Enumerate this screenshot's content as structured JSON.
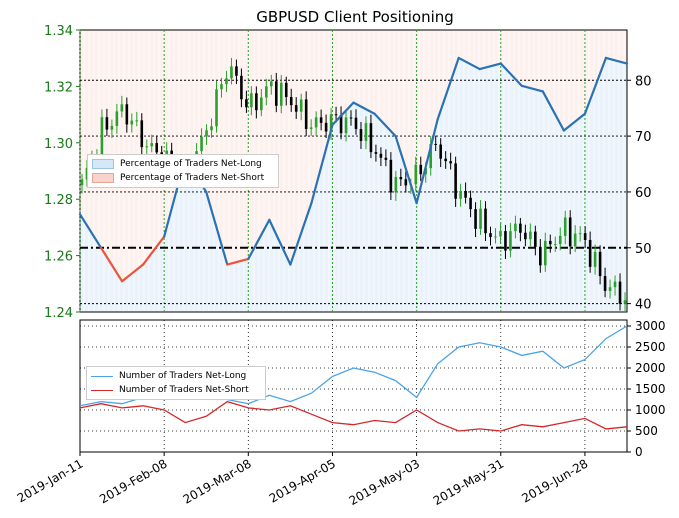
{
  "title": "GBPUSD Client Positioning",
  "colors": {
    "price_axis": "#1a7a1a",
    "long_line": "#2a72b5",
    "long_fill": "#d6e7f7",
    "short_line": "#e8553a",
    "short_fill": "#f8d4cc",
    "candle_up": "#2ca02c",
    "candle_down": "#000000",
    "count_long": "#4aa3e8",
    "count_short": "#d62728",
    "gridline": "#2ca02c"
  },
  "legend_top": {
    "placement": "middle-left",
    "items": [
      "Percentage of Traders Net-Long",
      "Percentage of Traders Net-Short"
    ]
  },
  "legend_bottom": {
    "placement": "middle-left",
    "items": [
      "Number of Traders Net-Long",
      "Number of Traders Net-Short"
    ]
  },
  "x_tick_labels": [
    "2019-Jan-11",
    "2019-Feb-08",
    "2019-Mar-08",
    "2019-Apr-05",
    "2019-May-03",
    "2019-May-31",
    "2019-Jun-28"
  ],
  "chart_data": [
    {
      "type": "line",
      "title": "GBPUSD Client Positioning",
      "left_axis_ticks": [
        "1.24",
        "1.26",
        "1.28",
        "1.30",
        "1.32",
        "1.34"
      ],
      "right_axis_ticks": [
        "40",
        "50",
        "60",
        "70",
        "80"
      ],
      "ylim_left": [
        1.24,
        1.34
      ],
      "ylim_right": [
        38.5,
        89
      ],
      "reference_line": 50,
      "x": [
        "2019-Jan-11",
        "2019-Jan-18",
        "2019-Jan-25",
        "2019-Feb-01",
        "2019-Feb-08",
        "2019-Feb-15",
        "2019-Feb-22",
        "2019-Mar-01",
        "2019-Mar-08",
        "2019-Mar-15",
        "2019-Mar-22",
        "2019-Mar-29",
        "2019-Apr-05",
        "2019-Apr-12",
        "2019-Apr-19",
        "2019-Apr-26",
        "2019-May-03",
        "2019-May-10",
        "2019-May-17",
        "2019-May-24",
        "2019-May-31",
        "2019-Jun-07",
        "2019-Jun-14",
        "2019-Jun-21",
        "2019-Jun-28",
        "2019-Jul-05",
        "2019-Jul-09"
      ],
      "series": [
        {
          "name": "Percentage of Traders Net-Long",
          "values": [
            56,
            50,
            44,
            47,
            52,
            66,
            60,
            47,
            48,
            55,
            47,
            58,
            72,
            76,
            74,
            70,
            58,
            73,
            84,
            82,
            83,
            79,
            78,
            71,
            74,
            84,
            83
          ]
        },
        {
          "name": "GBPUSD",
          "values": [
            1.285,
            1.305,
            1.312,
            1.3,
            1.293,
            1.288,
            1.305,
            1.328,
            1.312,
            1.32,
            1.315,
            1.306,
            1.308,
            1.307,
            1.298,
            1.285,
            1.288,
            1.3,
            1.283,
            1.272,
            1.265,
            1.27,
            1.26,
            1.269,
            1.266,
            1.25,
            1.245
          ]
        }
      ]
    },
    {
      "type": "line",
      "left_axis_ticks": [
        "0",
        "500",
        "1000",
        "1500",
        "2000",
        "2500",
        "3000"
      ],
      "ylim": [
        0,
        3000
      ],
      "x": [
        "2019-Jan-11",
        "2019-Jan-18",
        "2019-Jan-25",
        "2019-Feb-01",
        "2019-Feb-08",
        "2019-Feb-15",
        "2019-Feb-22",
        "2019-Mar-01",
        "2019-Mar-08",
        "2019-Mar-15",
        "2019-Mar-22",
        "2019-Mar-29",
        "2019-Apr-05",
        "2019-Apr-12",
        "2019-Apr-19",
        "2019-Apr-26",
        "2019-May-03",
        "2019-May-10",
        "2019-May-17",
        "2019-May-24",
        "2019-May-31",
        "2019-Jun-07",
        "2019-Jun-14",
        "2019-Jun-21",
        "2019-Jun-28",
        "2019-Jul-05",
        "2019-Jul-09"
      ],
      "series": [
        {
          "name": "Number of Traders Net-Long",
          "values": [
            1100,
            1200,
            1150,
            1300,
            1250,
            1400,
            1300,
            1250,
            1150,
            1350,
            1200,
            1400,
            1800,
            2000,
            1900,
            1700,
            1300,
            2100,
            2500,
            2600,
            2500,
            2300,
            2400,
            2000,
            2200,
            2700,
            3000
          ]
        },
        {
          "name": "Number of Traders Net-Short",
          "values": [
            1050,
            1150,
            1050,
            1100,
            1000,
            700,
            850,
            1200,
            1050,
            1000,
            1100,
            900,
            700,
            650,
            750,
            700,
            1000,
            700,
            500,
            550,
            500,
            650,
            600,
            700,
            800,
            550,
            600
          ]
        }
      ]
    }
  ]
}
